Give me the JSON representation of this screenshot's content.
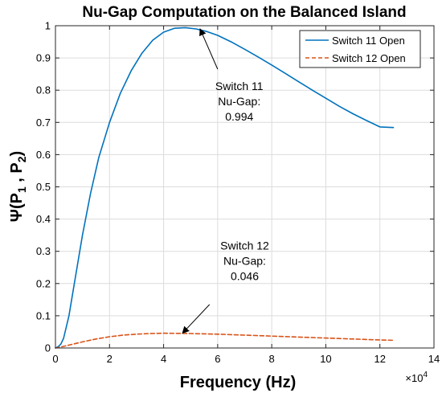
{
  "chart_data": {
    "type": "line",
    "title": "Nu-Gap Computation on the Balanced Island",
    "xlabel": "Frequency (Hz)",
    "ylabel_main": "Ψ(P",
    "ylabel_sub1": "1",
    "ylabel_sep": " , P",
    "ylabel_sub2": "2",
    "ylabel_close": ")",
    "x_multiplier_base": "×10",
    "x_multiplier_exp": "4",
    "xlim": [
      0,
      14
    ],
    "ylim": [
      0,
      1
    ],
    "x_ticks": [
      "0",
      "2",
      "4",
      "6",
      "8",
      "10",
      "12",
      "14"
    ],
    "y_ticks": [
      "0",
      "0.1",
      "0.2",
      "0.3",
      "0.4",
      "0.5",
      "0.6",
      "0.7",
      "0.8",
      "0.9",
      "1"
    ],
    "grid": true,
    "legend_position": "top-right",
    "series": [
      {
        "name": "Switch 11 Open",
        "color": "#0072BD",
        "style": "solid",
        "x": [
          0,
          0.1,
          0.2,
          0.3,
          0.5,
          0.7,
          1.0,
          1.3,
          1.6,
          2.0,
          2.4,
          2.8,
          3.2,
          3.6,
          4.0,
          4.4,
          4.8,
          5.2,
          5.6,
          6.0,
          6.5,
          7.0,
          7.5,
          8.0,
          8.5,
          9.0,
          9.5,
          10.0,
          10.5,
          11.0,
          11.5,
          12.0,
          12.5
        ],
        "y": [
          0,
          0.004,
          0.012,
          0.03,
          0.1,
          0.2,
          0.35,
          0.48,
          0.59,
          0.7,
          0.79,
          0.86,
          0.915,
          0.955,
          0.98,
          0.992,
          0.994,
          0.99,
          0.982,
          0.97,
          0.95,
          0.927,
          0.903,
          0.878,
          0.852,
          0.826,
          0.8,
          0.775,
          0.75,
          0.727,
          0.706,
          0.686,
          0.684
        ]
      },
      {
        "name": "Switch 12 Open",
        "color": "#D95319",
        "style": "dashed",
        "x": [
          0,
          0.2,
          0.5,
          1.0,
          1.5,
          2.0,
          2.5,
          3.0,
          3.5,
          4.0,
          4.5,
          5.0,
          6.0,
          7.0,
          8.0,
          9.0,
          10.0,
          11.0,
          12.0,
          12.5
        ],
        "y": [
          0,
          0.003,
          0.009,
          0.019,
          0.028,
          0.035,
          0.04,
          0.043,
          0.045,
          0.046,
          0.0455,
          0.045,
          0.043,
          0.04,
          0.037,
          0.034,
          0.031,
          0.028,
          0.025,
          0.024
        ]
      }
    ],
    "annotations": [
      {
        "lines": [
          "Switch 11",
          "Nu-Gap:",
          "0.994"
        ],
        "text_at": [
          6.8,
          0.8
        ],
        "arrow_from": [
          6.0,
          0.865
        ],
        "arrow_to": [
          5.35,
          0.99
        ]
      },
      {
        "lines": [
          "Switch 12",
          "Nu-Gap:",
          "0.046"
        ],
        "text_at": [
          7.0,
          0.305
        ],
        "arrow_from": [
          5.7,
          0.135
        ],
        "arrow_to": [
          4.7,
          0.046
        ]
      }
    ]
  }
}
